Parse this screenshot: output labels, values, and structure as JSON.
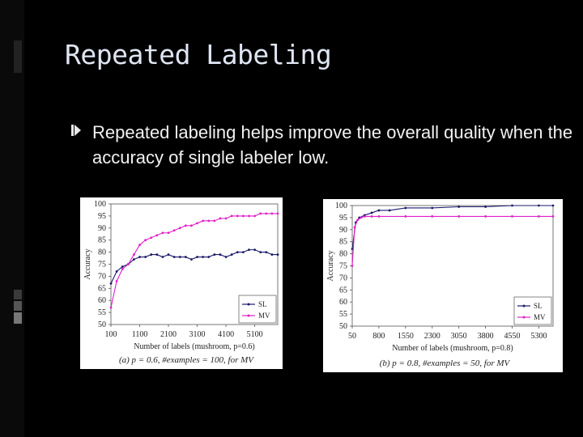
{
  "slide": {
    "title": "Repeated Labeling",
    "bullet": "Repeated labeling helps improve the overall quality when the accuracy of single labeler low."
  },
  "colors": {
    "background": "#000000",
    "title": "#dfe6f2",
    "SL": "#1b1b6b",
    "MV": "#e020c8"
  },
  "chart_data": [
    {
      "type": "line",
      "caption": "(a) p = 0.6, #examples = 100, for MV",
      "xlabel": "Number of labels (mushroom, p=0.6)",
      "ylabel": "Accuracy",
      "xlim": [
        100,
        5900
      ],
      "ylim": [
        50,
        100
      ],
      "xticks": [
        100,
        1100,
        2100,
        3100,
        4100,
        5100
      ],
      "yticks": [
        50,
        55,
        60,
        65,
        70,
        75,
        80,
        85,
        90,
        95,
        100
      ],
      "legend": "bottom-right",
      "series": [
        {
          "name": "SL",
          "x": [
            100,
            300,
            500,
            700,
            900,
            1100,
            1300,
            1500,
            1700,
            1900,
            2100,
            2300,
            2500,
            2700,
            2900,
            3100,
            3300,
            3500,
            3700,
            3900,
            4100,
            4300,
            4500,
            4700,
            4900,
            5100,
            5300,
            5500,
            5700,
            5900
          ],
          "values": [
            67,
            72,
            74,
            75,
            77,
            78,
            78,
            79,
            79,
            78,
            79,
            78,
            78,
            78,
            77,
            78,
            78,
            78,
            79,
            79,
            78,
            79,
            80,
            80,
            81,
            81,
            80,
            80,
            79,
            79
          ]
        },
        {
          "name": "MV",
          "x": [
            100,
            300,
            500,
            700,
            900,
            1100,
            1300,
            1500,
            1700,
            1900,
            2100,
            2300,
            2500,
            2700,
            2900,
            3100,
            3300,
            3500,
            3700,
            3900,
            4100,
            4300,
            4500,
            4700,
            4900,
            5100,
            5300,
            5500,
            5700,
            5900
          ],
          "values": [
            57,
            68,
            73,
            75,
            79,
            83,
            85,
            86,
            87,
            88,
            88,
            89,
            90,
            91,
            91,
            92,
            93,
            93,
            93,
            94,
            94,
            95,
            95,
            95,
            95,
            95,
            96,
            96,
            96,
            96
          ]
        }
      ]
    },
    {
      "type": "line",
      "caption": "(b) p = 0.8, #examples = 50, for MV",
      "xlabel": "Number of labels (mushroom, p=0.8)",
      "ylabel": "Accuracy",
      "xlim": [
        50,
        5700
      ],
      "ylim": [
        50,
        100
      ],
      "xticks": [
        50,
        800,
        1550,
        2300,
        3050,
        3800,
        4550,
        5300
      ],
      "yticks": [
        50,
        55,
        60,
        65,
        70,
        75,
        80,
        85,
        90,
        95,
        100
      ],
      "legend": "bottom-right",
      "series": [
        {
          "name": "SL",
          "x": [
            50,
            150,
            250,
            400,
            600,
            800,
            1100,
            1550,
            2300,
            3050,
            3800,
            4550,
            5300,
            5700
          ],
          "values": [
            82,
            93,
            95,
            96,
            97,
            98,
            98,
            99,
            99,
            99.5,
            99.5,
            100,
            100,
            100
          ]
        },
        {
          "name": "MV",
          "x": [
            50,
            120,
            200,
            300,
            400,
            600,
            800,
            1550,
            2300,
            3050,
            3800,
            4550,
            5300,
            5700
          ],
          "values": [
            75,
            91,
            94,
            95,
            95.5,
            95.5,
            95.5,
            95.5,
            95.5,
            95.5,
            95.5,
            95.5,
            95.5,
            95.5
          ]
        }
      ]
    }
  ]
}
